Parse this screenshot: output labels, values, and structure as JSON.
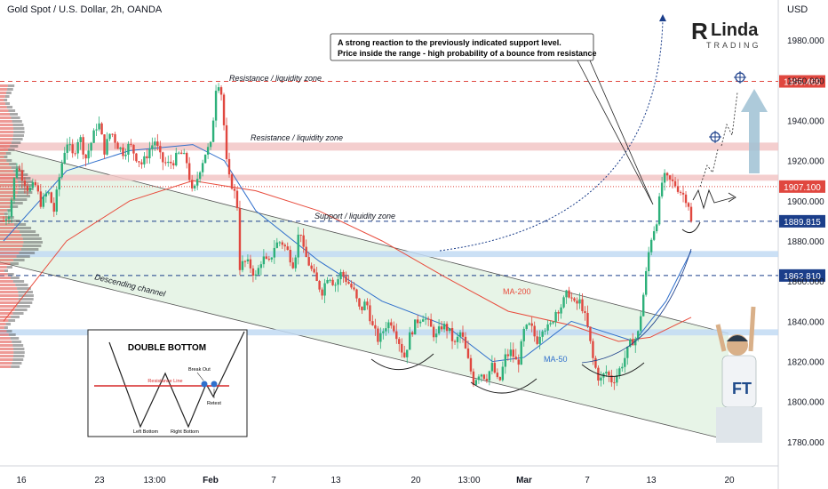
{
  "header": {
    "title": "Gold Spot / U.S. Dollar, 2h, OANDA",
    "currency": "USD"
  },
  "logo": {
    "brand": "Linda",
    "sub": "TRADING"
  },
  "colors": {
    "up": "#2db07a",
    "down": "#e0473f",
    "ma200": "#e84c3d",
    "ma50": "#2f6fcc",
    "resistance_zone": "#f2c6c6",
    "support_zone": "#c2dbf3",
    "channel_fill": "#e4f3e4",
    "level_dashed_red": "#e0473f",
    "level_dashed_blue": "#1b3e8a"
  },
  "annotations": {
    "callout_line1": "A strong reaction to the previously indicated support level.",
    "callout_line2": "Price inside the range - high probability of a bounce from resistance",
    "resistance_top": "Resistance / liquidity zone",
    "resistance_mid": "Resistance / liquidity zone",
    "support": "Support / liquidity zone",
    "channel": "Descending channel",
    "ma200": "MA-200",
    "ma50": "MA-50"
  },
  "inset": {
    "title": "DOUBLE BOTTOM",
    "break_out": "Break Out",
    "resistance_line": "Resistance Line",
    "retest": "Retest",
    "left_bottom": "Left Bottom",
    "right_bottom": "Right Bottom"
  },
  "chart_data": {
    "type": "candlestick",
    "title": "Gold Spot / U.S. Dollar, 2h, OANDA",
    "ylim": [
      1768,
      2000
    ],
    "y_ticks": [
      1780,
      1800,
      1820,
      1840,
      1860,
      1880,
      1900,
      1920,
      1940,
      1960,
      1980
    ],
    "x_ticks": [
      "16",
      "23",
      "13:00",
      "Feb",
      "7",
      "13",
      "20",
      "13:00",
      "Mar",
      "7",
      "13",
      "20"
    ],
    "price_labels": [
      {
        "value": 1959.469,
        "label": "1959.469",
        "color": "#e0473f",
        "style": "dashed"
      },
      {
        "value": 1907.1,
        "label": "1907.100",
        "color": "#e0473f",
        "style": "dotted"
      },
      {
        "value": 1889.815,
        "label": "1889.815",
        "color": "#1b3e8a",
        "style": "dashed"
      },
      {
        "value": 1862.81,
        "label": "1862.810",
        "color": "#1b3e8a",
        "style": "dashed"
      }
    ],
    "zones": [
      {
        "name": "resistance-zone-upper",
        "from": 1925,
        "to": 1929
      },
      {
        "name": "resistance-zone-lower",
        "from": 1910,
        "to": 1913
      },
      {
        "name": "support-zone",
        "from": 1872,
        "to": 1875
      },
      {
        "name": "support-zone-lower",
        "from": 1833,
        "to": 1836
      }
    ],
    "price_path": [
      [
        0,
        1890
      ],
      [
        2,
        1895
      ],
      [
        4,
        1918
      ],
      [
        6,
        1912
      ],
      [
        8,
        1905
      ],
      [
        10,
        1908
      ],
      [
        12,
        1898
      ],
      [
        14,
        1905
      ],
      [
        16,
        1895
      ],
      [
        18,
        1915
      ],
      [
        20,
        1930
      ],
      [
        22,
        1922
      ],
      [
        24,
        1933
      ],
      [
        26,
        1921
      ],
      [
        28,
        1930
      ],
      [
        30,
        1940
      ],
      [
        32,
        1925
      ],
      [
        34,
        1935
      ],
      [
        36,
        1928
      ],
      [
        38,
        1924
      ],
      [
        40,
        1928
      ],
      [
        42,
        1922
      ],
      [
        44,
        1918
      ],
      [
        46,
        1925
      ],
      [
        48,
        1930
      ],
      [
        50,
        1920
      ],
      [
        52,
        1918
      ],
      [
        54,
        1920
      ],
      [
        56,
        1924
      ],
      [
        58,
        1920
      ],
      [
        60,
        1902
      ],
      [
        62,
        1915
      ],
      [
        64,
        1924
      ],
      [
        66,
        1928
      ],
      [
        67,
        1955
      ],
      [
        68,
        1960
      ],
      [
        69,
        1954
      ],
      [
        70,
        1935
      ],
      [
        71,
        1912
      ],
      [
        72,
        1910
      ],
      [
        74,
        1900
      ],
      [
        75,
        1864
      ],
      [
        76,
        1870
      ],
      [
        78,
        1868
      ],
      [
        80,
        1862
      ],
      [
        82,
        1872
      ],
      [
        84,
        1868
      ],
      [
        86,
        1878
      ],
      [
        88,
        1880
      ],
      [
        90,
        1875
      ],
      [
        92,
        1868
      ],
      [
        94,
        1888
      ],
      [
        95,
        1875
      ],
      [
        97,
        1868
      ],
      [
        99,
        1860
      ],
      [
        101,
        1855
      ],
      [
        103,
        1864
      ],
      [
        105,
        1858
      ],
      [
        107,
        1864
      ],
      [
        109,
        1860
      ],
      [
        111,
        1855
      ],
      [
        113,
        1845
      ],
      [
        115,
        1850
      ],
      [
        117,
        1837
      ],
      [
        119,
        1830
      ],
      [
        121,
        1838
      ],
      [
        123,
        1840
      ],
      [
        125,
        1832
      ],
      [
        127,
        1822
      ],
      [
        129,
        1834
      ],
      [
        131,
        1840
      ],
      [
        133,
        1843
      ],
      [
        135,
        1838
      ],
      [
        137,
        1832
      ],
      [
        139,
        1838
      ],
      [
        141,
        1836
      ],
      [
        143,
        1828
      ],
      [
        145,
        1835
      ],
      [
        147,
        1822
      ],
      [
        149,
        1810
      ],
      [
        151,
        1815
      ],
      [
        153,
        1812
      ],
      [
        155,
        1818
      ],
      [
        157,
        1808
      ],
      [
        159,
        1822
      ],
      [
        161,
        1825
      ],
      [
        163,
        1818
      ],
      [
        165,
        1835
      ],
      [
        167,
        1838
      ],
      [
        169,
        1830
      ],
      [
        171,
        1838
      ],
      [
        173,
        1836
      ],
      [
        175,
        1845
      ],
      [
        177,
        1848
      ],
      [
        179,
        1855
      ],
      [
        181,
        1848
      ],
      [
        183,
        1850
      ],
      [
        185,
        1838
      ],
      [
        187,
        1820
      ],
      [
        189,
        1810
      ],
      [
        191,
        1815
      ],
      [
        193,
        1810
      ],
      [
        195,
        1815
      ],
      [
        197,
        1822
      ],
      [
        199,
        1830
      ],
      [
        201,
        1832
      ],
      [
        203,
        1855
      ],
      [
        205,
        1880
      ],
      [
        207,
        1890
      ],
      [
        209,
        1912
      ],
      [
        211,
        1910
      ],
      [
        213,
        1908
      ],
      [
        215,
        1904
      ],
      [
        217,
        1900
      ],
      [
        218,
        1889
      ]
    ],
    "series": [
      {
        "name": "MA-200",
        "values": [
          [
            0,
            1840
          ],
          [
            20,
            1880
          ],
          [
            40,
            1900
          ],
          [
            60,
            1910
          ],
          [
            80,
            1905
          ],
          [
            100,
            1895
          ],
          [
            120,
            1880
          ],
          [
            140,
            1862
          ],
          [
            160,
            1845
          ],
          [
            180,
            1838
          ],
          [
            195,
            1830
          ],
          [
            205,
            1832
          ],
          [
            218,
            1842
          ]
        ]
      },
      {
        "name": "MA-50",
        "values": [
          [
            0,
            1880
          ],
          [
            20,
            1915
          ],
          [
            40,
            1925
          ],
          [
            60,
            1928
          ],
          [
            70,
            1920
          ],
          [
            80,
            1895
          ],
          [
            100,
            1870
          ],
          [
            120,
            1850
          ],
          [
            140,
            1838
          ],
          [
            155,
            1820
          ],
          [
            165,
            1822
          ],
          [
            180,
            1840
          ],
          [
            190,
            1835
          ],
          [
            200,
            1830
          ],
          [
            210,
            1850
          ],
          [
            218,
            1875
          ]
        ]
      }
    ]
  }
}
